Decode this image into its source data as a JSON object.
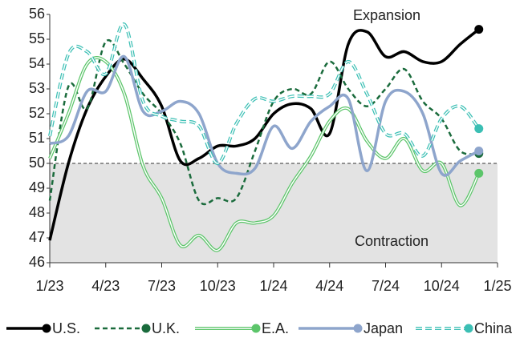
{
  "chart_data": {
    "type": "line",
    "annotations": [
      "Expansion",
      "Contraction"
    ],
    "x": [
      0,
      1,
      2,
      3,
      4,
      5,
      6,
      7,
      8,
      9,
      10,
      11,
      12,
      13,
      14,
      15,
      16,
      17,
      18,
      19,
      20,
      21,
      22,
      23
    ],
    "xlim": [
      0,
      24
    ],
    "xticks": [
      {
        "value": 0,
        "label": "1/23"
      },
      {
        "value": 3,
        "label": "4/23"
      },
      {
        "value": 6,
        "label": "7/23"
      },
      {
        "value": 9,
        "label": "10/23"
      },
      {
        "value": 12,
        "label": "1/24"
      },
      {
        "value": 15,
        "label": "4/24"
      },
      {
        "value": 18,
        "label": "7/24"
      },
      {
        "value": 21,
        "label": "10/24"
      },
      {
        "value": 24,
        "label": "1/25"
      }
    ],
    "ylim": [
      46,
      56
    ],
    "yticks": [
      46,
      47,
      48,
      49,
      50,
      51,
      52,
      53,
      54,
      55,
      56
    ],
    "threshold": 50,
    "series": [
      {
        "name": "U.S.",
        "color": "#000000",
        "style": "solid",
        "values": [
          46.9,
          50.0,
          52.2,
          53.5,
          54.2,
          53.4,
          52.3,
          50.1,
          50.2,
          50.7,
          50.7,
          51.0,
          52.0,
          52.4,
          52.2,
          51.2,
          54.8,
          55.3,
          54.3,
          54.5,
          54.1,
          54.1,
          54.8,
          55.4
        ]
      },
      {
        "name": "U.K.",
        "color": "#1a6b3c",
        "style": "dashed",
        "values": [
          48.5,
          53.1,
          52.2,
          54.9,
          54.0,
          52.8,
          52.0,
          50.8,
          48.5,
          48.6,
          48.6,
          50.5,
          52.5,
          53.0,
          52.8,
          54.1,
          53.0,
          52.3,
          53.0,
          53.8,
          52.5,
          51.8,
          50.5,
          50.4
        ]
      },
      {
        "name": "E.A.",
        "color": "#5cc56a",
        "style": "double",
        "values": [
          50.2,
          52.0,
          54.0,
          54.1,
          52.8,
          49.9,
          48.6,
          46.7,
          47.1,
          46.5,
          47.6,
          47.6,
          47.9,
          49.2,
          50.3,
          51.7,
          52.2,
          50.9,
          50.2,
          51.0,
          49.7,
          50.0,
          48.3,
          49.6
        ]
      },
      {
        "name": "Japan",
        "color": "#8ea5cc",
        "style": "solid",
        "values": [
          50.8,
          51.1,
          52.9,
          52.9,
          54.3,
          52.1,
          52.1,
          52.5,
          52.0,
          50.0,
          49.6,
          49.8,
          51.5,
          50.6,
          51.7,
          52.3,
          52.6,
          49.7,
          52.5,
          52.9,
          52.0,
          49.6,
          50.1,
          50.5
        ]
      },
      {
        "name": "China",
        "color": "#3bbfb4",
        "style": "double-dashed",
        "values": [
          51.1,
          54.4,
          54.5,
          53.6,
          55.6,
          52.5,
          51.9,
          51.7,
          51.5,
          50.0,
          51.6,
          52.6,
          52.5,
          52.7,
          52.7,
          52.8,
          54.1,
          52.8,
          51.2,
          51.2,
          50.3,
          51.8,
          52.3,
          51.4
        ]
      }
    ]
  }
}
